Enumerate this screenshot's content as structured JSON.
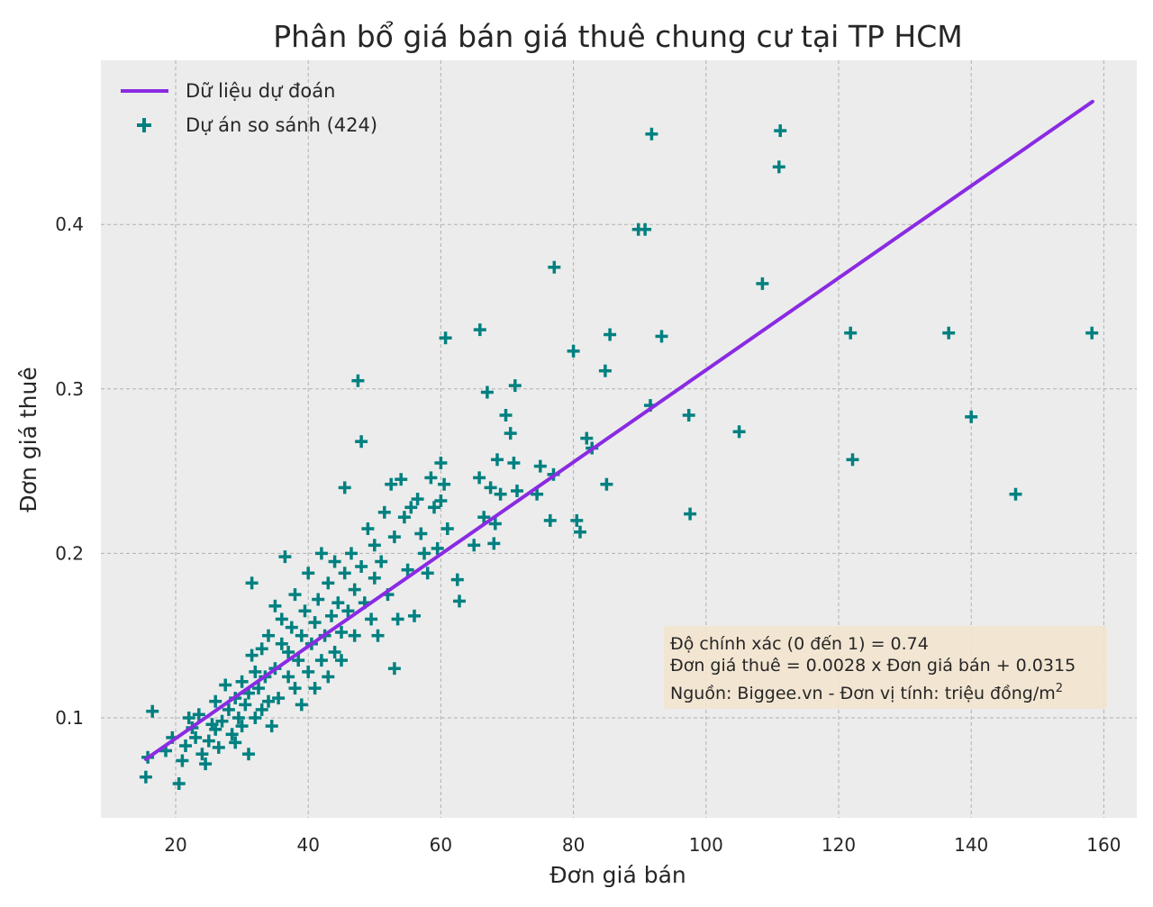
{
  "chart_data": {
    "type": "scatter",
    "title": "Phân bổ giá bán giá thuê chung cư tại TP HCM",
    "xlabel": "Đơn giá bán",
    "ylabel": "Đơn giá thuê",
    "xlim": [
      9,
      161
    ],
    "ylim": [
      0.04,
      0.5
    ],
    "xticks": [
      20,
      40,
      60,
      80,
      100,
      120,
      140,
      160
    ],
    "yticks": [
      0.1,
      0.2,
      0.3,
      0.4
    ],
    "grid": true,
    "legend_position": "top-left",
    "colors": {
      "background": "#ececec",
      "grid": "#b0b0b0",
      "line": "#8a2be2",
      "points": "#008080",
      "annotation_box": "#f3e4cf"
    },
    "line": {
      "name": "Dữ liệu dự đoán",
      "slope": 0.0028,
      "intercept": 0.0315,
      "x": [
        15.5,
        158.3
      ],
      "y": [
        0.0749,
        0.4747
      ]
    },
    "series": [
      {
        "name": "Dự án so sánh (424)",
        "points": [
          [
            15.5,
            0.064
          ],
          [
            15.8,
            0.076
          ],
          [
            16.5,
            0.104
          ],
          [
            18.5,
            0.08
          ],
          [
            19.5,
            0.088
          ],
          [
            20.5,
            0.06
          ],
          [
            21.0,
            0.074
          ],
          [
            21.5,
            0.083
          ],
          [
            22.0,
            0.1
          ],
          [
            22.5,
            0.094
          ],
          [
            23.0,
            0.088
          ],
          [
            23.5,
            0.102
          ],
          [
            24.0,
            0.078
          ],
          [
            24.5,
            0.072
          ],
          [
            25.0,
            0.086
          ],
          [
            25.5,
            0.096
          ],
          [
            26.0,
            0.093
          ],
          [
            26.0,
            0.11
          ],
          [
            26.5,
            0.082
          ],
          [
            27.0,
            0.098
          ],
          [
            27.5,
            0.12
          ],
          [
            28.0,
            0.105
          ],
          [
            28.5,
            0.09
          ],
          [
            29.0,
            0.085
          ],
          [
            29.0,
            0.112
          ],
          [
            29.5,
            0.1
          ],
          [
            30.0,
            0.095
          ],
          [
            30.0,
            0.122
          ],
          [
            30.5,
            0.108
          ],
          [
            31.0,
            0.115
          ],
          [
            31.0,
            0.078
          ],
          [
            31.5,
            0.138
          ],
          [
            31.5,
            0.182
          ],
          [
            32.0,
            0.1
          ],
          [
            32.0,
            0.128
          ],
          [
            32.5,
            0.118
          ],
          [
            33.0,
            0.105
          ],
          [
            33.0,
            0.142
          ],
          [
            33.5,
            0.125
          ],
          [
            34.0,
            0.11
          ],
          [
            34.0,
            0.15
          ],
          [
            34.5,
            0.095
          ],
          [
            35.0,
            0.13
          ],
          [
            35.0,
            0.168
          ],
          [
            35.5,
            0.112
          ],
          [
            36.0,
            0.145
          ],
          [
            36.0,
            0.16
          ],
          [
            36.5,
            0.198
          ],
          [
            37.0,
            0.125
          ],
          [
            37.0,
            0.14
          ],
          [
            37.5,
            0.155
          ],
          [
            38.0,
            0.118
          ],
          [
            38.0,
            0.175
          ],
          [
            38.5,
            0.135
          ],
          [
            39.0,
            0.15
          ],
          [
            39.0,
            0.108
          ],
          [
            39.5,
            0.165
          ],
          [
            40.0,
            0.128
          ],
          [
            40.0,
            0.188
          ],
          [
            40.5,
            0.145
          ],
          [
            41.0,
            0.158
          ],
          [
            41.0,
            0.118
          ],
          [
            41.5,
            0.172
          ],
          [
            42.0,
            0.135
          ],
          [
            42.0,
            0.2
          ],
          [
            42.5,
            0.15
          ],
          [
            43.0,
            0.125
          ],
          [
            43.0,
            0.182
          ],
          [
            43.5,
            0.162
          ],
          [
            44.0,
            0.14
          ],
          [
            44.0,
            0.195
          ],
          [
            44.5,
            0.17
          ],
          [
            45.0,
            0.135
          ],
          [
            45.0,
            0.152
          ],
          [
            45.5,
            0.188
          ],
          [
            45.5,
            0.24
          ],
          [
            46.0,
            0.165
          ],
          [
            46.5,
            0.2
          ],
          [
            47.0,
            0.15
          ],
          [
            47.0,
            0.178
          ],
          [
            47.5,
            0.305
          ],
          [
            48.0,
            0.268
          ],
          [
            48.0,
            0.192
          ],
          [
            48.5,
            0.17
          ],
          [
            49.0,
            0.215
          ],
          [
            49.5,
            0.16
          ],
          [
            50.0,
            0.185
          ],
          [
            50.0,
            0.205
          ],
          [
            50.5,
            0.15
          ],
          [
            51.0,
            0.195
          ],
          [
            51.5,
            0.225
          ],
          [
            52.0,
            0.175
          ],
          [
            52.5,
            0.242
          ],
          [
            53.0,
            0.21
          ],
          [
            53.0,
            0.13
          ],
          [
            53.5,
            0.16
          ],
          [
            54.0,
            0.245
          ],
          [
            54.5,
            0.222
          ],
          [
            55.0,
            0.19
          ],
          [
            55.5,
            0.228
          ],
          [
            56.0,
            0.162
          ],
          [
            56.5,
            0.233
          ],
          [
            57.0,
            0.212
          ],
          [
            57.5,
            0.2
          ],
          [
            58.0,
            0.188
          ],
          [
            58.5,
            0.246
          ],
          [
            59.0,
            0.228
          ],
          [
            59.5,
            0.203
          ],
          [
            60.0,
            0.255
          ],
          [
            60.0,
            0.232
          ],
          [
            60.5,
            0.242
          ],
          [
            61.0,
            0.215
          ],
          [
            60.7,
            0.331
          ],
          [
            62.5,
            0.184
          ],
          [
            62.8,
            0.171
          ],
          [
            65.0,
            0.205
          ],
          [
            65.8,
            0.246
          ],
          [
            65.9,
            0.336
          ],
          [
            66.5,
            0.222
          ],
          [
            67.0,
            0.298
          ],
          [
            67.5,
            0.24
          ],
          [
            68.0,
            0.206
          ],
          [
            68.2,
            0.218
          ],
          [
            68.5,
            0.257
          ],
          [
            69.0,
            0.236
          ],
          [
            69.8,
            0.284
          ],
          [
            70.5,
            0.273
          ],
          [
            71.0,
            0.255
          ],
          [
            71.2,
            0.302
          ],
          [
            71.5,
            0.238
          ],
          [
            74.5,
            0.236
          ],
          [
            75.0,
            0.253
          ],
          [
            76.5,
            0.22
          ],
          [
            77.0,
            0.248
          ],
          [
            77.1,
            0.374
          ],
          [
            80.0,
            0.323
          ],
          [
            80.5,
            0.22
          ],
          [
            81.0,
            0.213
          ],
          [
            82.0,
            0.27
          ],
          [
            82.8,
            0.264
          ],
          [
            84.8,
            0.311
          ],
          [
            85.0,
            0.242
          ],
          [
            85.5,
            0.333
          ],
          [
            89.8,
            0.397
          ],
          [
            90.8,
            0.397
          ],
          [
            91.6,
            0.29
          ],
          [
            91.8,
            0.455
          ],
          [
            93.3,
            0.332
          ],
          [
            97.4,
            0.284
          ],
          [
            97.6,
            0.224
          ],
          [
            105.0,
            0.274
          ],
          [
            108.5,
            0.364
          ],
          [
            111.0,
            0.435
          ],
          [
            111.2,
            0.457
          ],
          [
            121.8,
            0.334
          ],
          [
            122.1,
            0.257
          ],
          [
            136.6,
            0.334
          ],
          [
            140.0,
            0.283
          ],
          [
            146.7,
            0.236
          ],
          [
            158.2,
            0.334
          ]
        ]
      }
    ],
    "annotation": {
      "line1": "Độ chính xác (0 đến 1) = 0.74",
      "line2": "Đơn giá thuê = 0.0028 x Đơn giá bán + 0.0315",
      "line3": "Nguồn: Biggee.vn - Đơn vị tính: triệu đồng/m",
      "line3_sup": "2"
    }
  }
}
